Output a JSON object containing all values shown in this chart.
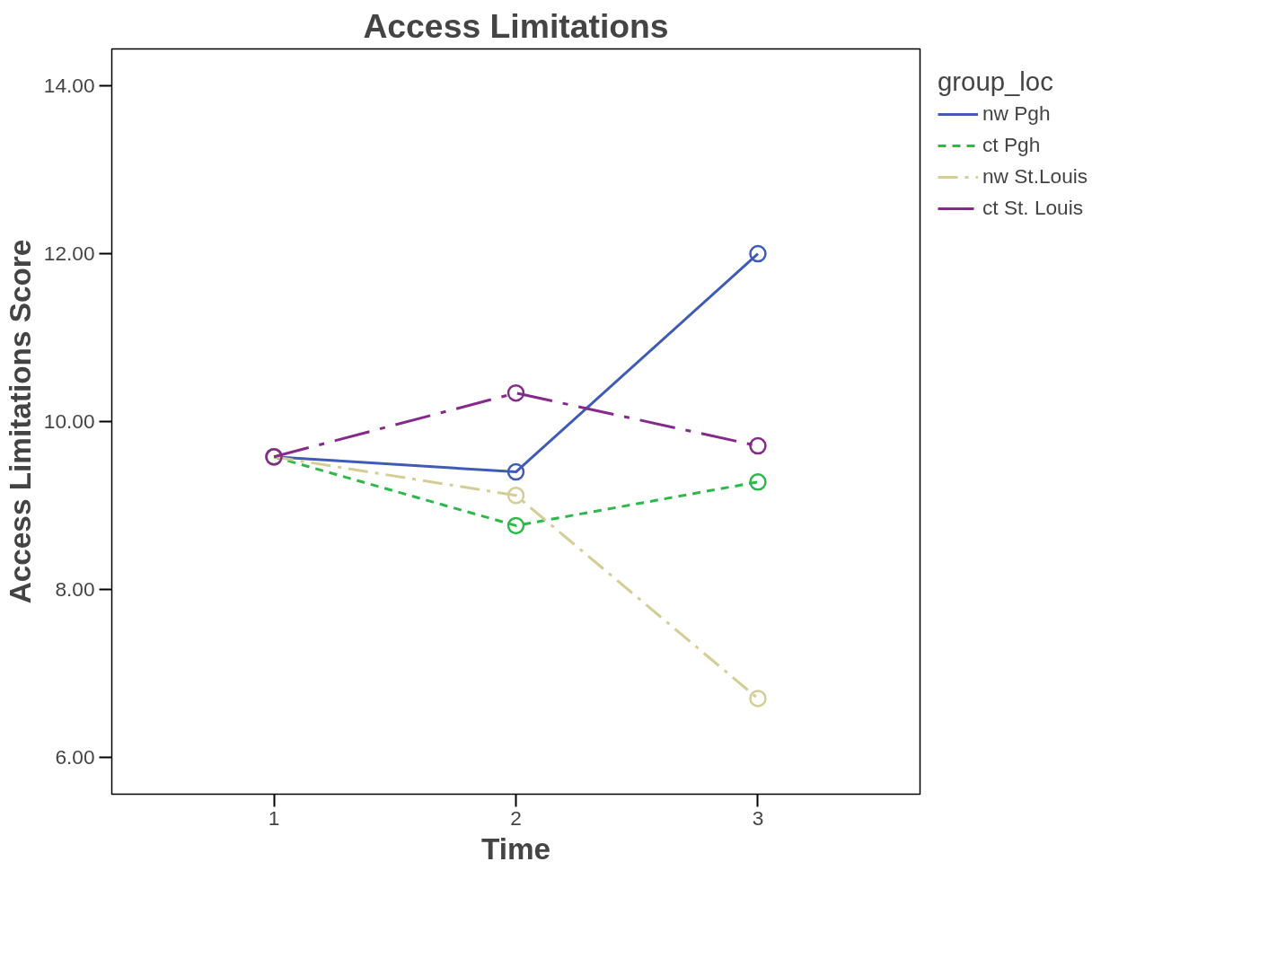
{
  "chart_data": {
    "type": "line",
    "title": "Access Limitations",
    "xlabel": "Time",
    "ylabel": "Access Limitations Score",
    "legend_title": "group_loc",
    "legend": "top right",
    "marker": "circle",
    "grid": false,
    "x": [
      1,
      2,
      3
    ],
    "xlim": [
      0.33,
      3.67
    ],
    "xticks": [
      1,
      2,
      3
    ],
    "ylim": [
      5.56,
      14.44
    ],
    "yticks": [
      {
        "value": 6,
        "label": "6.00"
      },
      {
        "value": 8,
        "label": "8.00"
      },
      {
        "value": 10,
        "label": "10.00"
      },
      {
        "value": 12,
        "label": "12.00"
      },
      {
        "value": 14,
        "label": "14.00"
      }
    ],
    "series": [
      {
        "name": "nw Pgh",
        "color": "#3f5bb5",
        "line_style": "solid",
        "values": [
          9.58,
          9.4,
          12.0
        ]
      },
      {
        "name": "ct Pgh",
        "color": "#2db84a",
        "line_style": "dashed",
        "values": [
          9.58,
          8.76,
          9.28
        ]
      },
      {
        "name": "nw St.Louis",
        "color": "#d4cd96",
        "line_style": "dashdot",
        "values": [
          9.58,
          9.12,
          6.7
        ]
      },
      {
        "name": "ct St. Louis",
        "color": "#852a8a",
        "line_style": "longdashdot",
        "values": [
          9.58,
          10.34,
          9.71
        ]
      }
    ]
  }
}
